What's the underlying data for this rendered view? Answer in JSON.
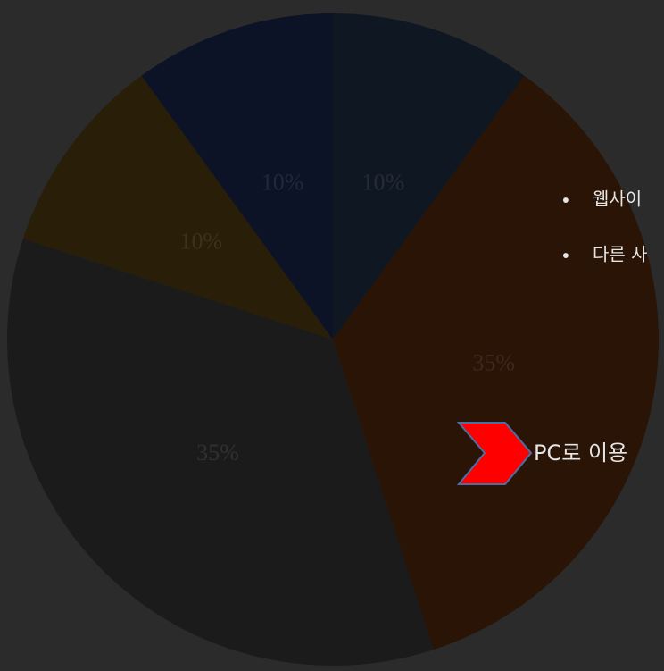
{
  "chart_data": {
    "type": "pie",
    "values": [
      10,
      35,
      35,
      10,
      10
    ],
    "value_labels": [
      "10%",
      "35%",
      "35%",
      "10%",
      "10%"
    ],
    "colors": [
      "#0f1722",
      "#2a1405",
      "#1b1b1b",
      "#291e07",
      "#0c1326"
    ]
  },
  "bullets": [
    "웹사이",
    "다른 사"
  ],
  "callout": "PC로 이용"
}
